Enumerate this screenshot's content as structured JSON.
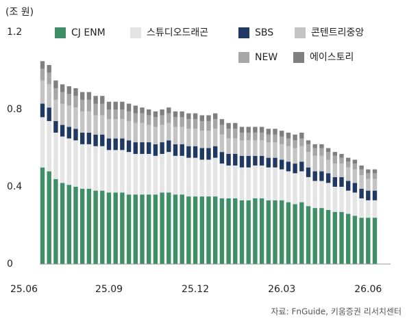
{
  "chart_data": {
    "type": "stacked-bar",
    "unit": "(조 원)",
    "source": "자료: FnGuide, 키움증권 리서치센터",
    "categories": [
      "25.06",
      null,
      null,
      null,
      null,
      null,
      null,
      null,
      null,
      null,
      "25.09",
      null,
      null,
      null,
      null,
      null,
      null,
      null,
      null,
      null,
      null,
      null,
      null,
      "25.12",
      null,
      null,
      null,
      null,
      null,
      null,
      null,
      null,
      null,
      null,
      null,
      null,
      "26.03",
      null,
      null,
      null,
      null,
      null,
      null,
      null,
      null,
      null,
      null,
      null,
      null,
      "26.06",
      null
    ],
    "series": [
      {
        "name": "CJ ENM",
        "color": "#3f8f66",
        "values": [
          0.5,
          0.48,
          0.44,
          0.42,
          0.41,
          0.4,
          0.39,
          0.39,
          0.38,
          0.38,
          0.37,
          0.37,
          0.37,
          0.36,
          0.36,
          0.36,
          0.36,
          0.36,
          0.37,
          0.37,
          0.36,
          0.36,
          0.35,
          0.35,
          0.35,
          0.35,
          0.35,
          0.34,
          0.34,
          0.34,
          0.33,
          0.33,
          0.34,
          0.34,
          0.33,
          0.33,
          0.33,
          0.32,
          0.31,
          0.32,
          0.3,
          0.29,
          0.29,
          0.28,
          0.27,
          0.27,
          0.26,
          0.25,
          0.24,
          0.24,
          0.24
        ]
      },
      {
        "name": "스튜디오드래곤",
        "color": "#e4e4e4",
        "values": [
          0.26,
          0.26,
          0.24,
          0.24,
          0.24,
          0.24,
          0.23,
          0.23,
          0.23,
          0.23,
          0.22,
          0.22,
          0.22,
          0.22,
          0.21,
          0.21,
          0.21,
          0.2,
          0.2,
          0.21,
          0.2,
          0.2,
          0.2,
          0.2,
          0.19,
          0.19,
          0.2,
          0.18,
          0.17,
          0.17,
          0.17,
          0.17,
          0.17,
          0.17,
          0.17,
          0.17,
          0.16,
          0.16,
          0.16,
          0.16,
          0.15,
          0.14,
          0.14,
          0.14,
          0.13,
          0.13,
          0.12,
          0.12,
          0.1,
          0.09,
          0.09
        ]
      },
      {
        "name": "SBS",
        "color": "#1f3864",
        "values": [
          0.07,
          0.07,
          0.06,
          0.06,
          0.06,
          0.06,
          0.06,
          0.06,
          0.06,
          0.06,
          0.06,
          0.06,
          0.06,
          0.06,
          0.06,
          0.06,
          0.06,
          0.06,
          0.06,
          0.06,
          0.06,
          0.06,
          0.06,
          0.06,
          0.06,
          0.06,
          0.06,
          0.06,
          0.06,
          0.06,
          0.06,
          0.06,
          0.05,
          0.05,
          0.05,
          0.05,
          0.05,
          0.05,
          0.05,
          0.05,
          0.05,
          0.05,
          0.05,
          0.05,
          0.05,
          0.05,
          0.05,
          0.05,
          0.05,
          0.05,
          0.05
        ]
      },
      {
        "name": "콘텐트리중앙",
        "color": "#c4c4c4",
        "values": [
          0.12,
          0.12,
          0.11,
          0.11,
          0.11,
          0.11,
          0.11,
          0.11,
          0.1,
          0.1,
          0.1,
          0.1,
          0.1,
          0.1,
          0.1,
          0.1,
          0.09,
          0.09,
          0.09,
          0.09,
          0.09,
          0.09,
          0.09,
          0.09,
          0.09,
          0.09,
          0.09,
          0.09,
          0.08,
          0.08,
          0.08,
          0.08,
          0.08,
          0.08,
          0.08,
          0.08,
          0.08,
          0.08,
          0.08,
          0.08,
          0.08,
          0.08,
          0.08,
          0.07,
          0.07,
          0.07,
          0.07,
          0.07,
          0.07,
          0.06,
          0.06
        ]
      },
      {
        "name": "NEW",
        "color": "#a6a6a6",
        "values": [
          0.06,
          0.06,
          0.06,
          0.06,
          0.06,
          0.06,
          0.06,
          0.06,
          0.06,
          0.06,
          0.05,
          0.05,
          0.05,
          0.05,
          0.05,
          0.05,
          0.05,
          0.05,
          0.05,
          0.05,
          0.05,
          0.05,
          0.05,
          0.05,
          0.05,
          0.05,
          0.05,
          0.05,
          0.05,
          0.05,
          0.04,
          0.04,
          0.04,
          0.04,
          0.04,
          0.04,
          0.04,
          0.04,
          0.04,
          0.04,
          0.04,
          0.04,
          0.04,
          0.04,
          0.04,
          0.03,
          0.03,
          0.03,
          0.03,
          0.03,
          0.03
        ]
      },
      {
        "name": "에이스토리",
        "color": "#7f7f7f",
        "values": [
          0.04,
          0.04,
          0.04,
          0.04,
          0.04,
          0.04,
          0.04,
          0.04,
          0.04,
          0.04,
          0.04,
          0.04,
          0.04,
          0.04,
          0.04,
          0.03,
          0.03,
          0.03,
          0.03,
          0.03,
          0.03,
          0.03,
          0.03,
          0.03,
          0.03,
          0.03,
          0.03,
          0.03,
          0.03,
          0.03,
          0.03,
          0.03,
          0.03,
          0.03,
          0.03,
          0.03,
          0.03,
          0.03,
          0.03,
          0.03,
          0.02,
          0.02,
          0.02,
          0.02,
          0.02,
          0.02,
          0.02,
          0.02,
          0.02,
          0.02,
          0.02
        ]
      }
    ],
    "ylim": [
      0,
      1.2
    ],
    "yticks": [
      0,
      0.4,
      0.8,
      {
        "value": 1.2,
        "label": "1.2"
      }
    ],
    "grid": false
  }
}
